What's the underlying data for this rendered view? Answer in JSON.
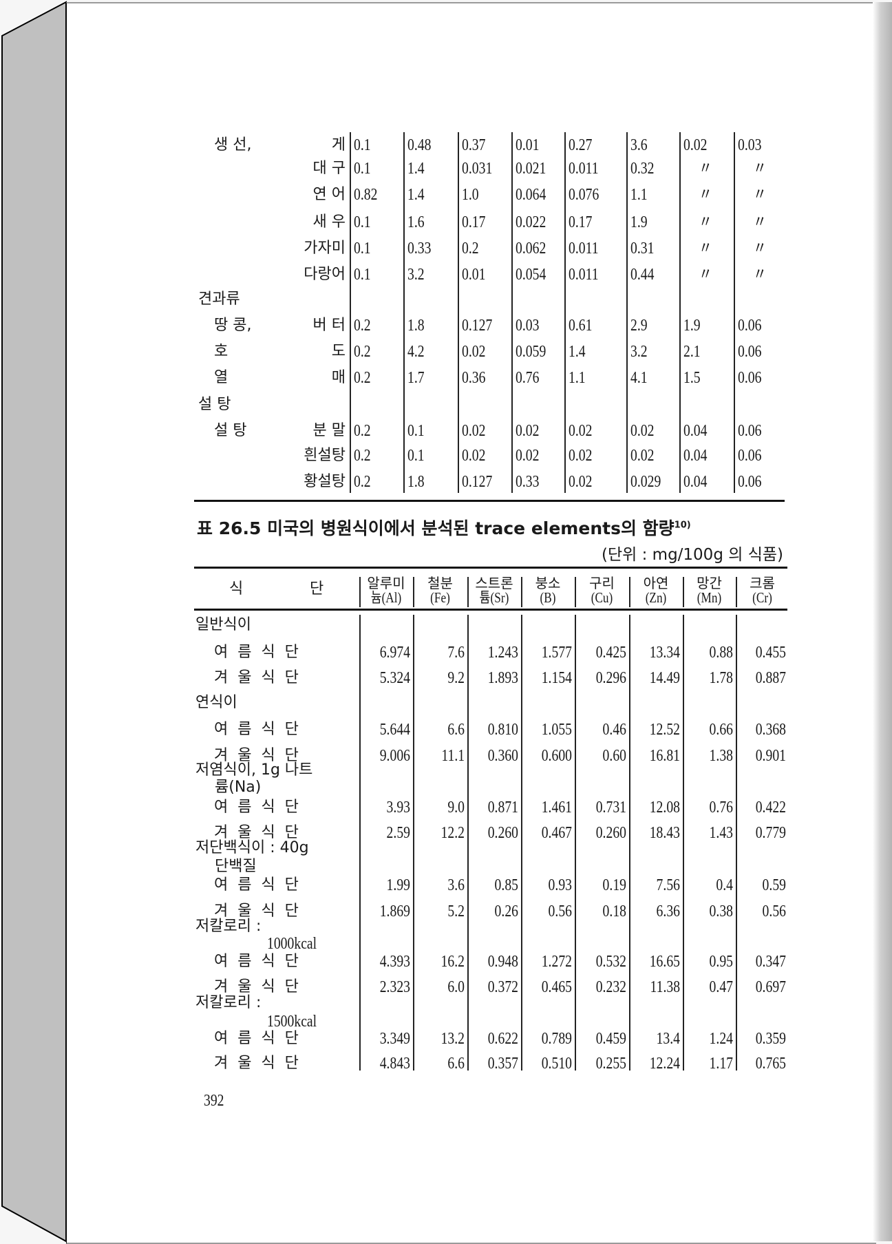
{
  "top_table": {
    "rows": [
      {
        "group": "생   선,",
        "item": "게",
        "values": [
          "0.1",
          "0.48",
          "0.37",
          "0.01",
          "0.27",
          "3.6",
          "0.02",
          "0.03"
        ]
      },
      {
        "item": "대  구",
        "values": [
          "0.1",
          "1.4",
          "0.031",
          "0.021",
          "0.011",
          "0.32",
          "〃",
          "〃"
        ]
      },
      {
        "item": "연  어",
        "values": [
          "0.82",
          "1.4",
          "1.0",
          "0.064",
          "0.076",
          "1.1",
          "〃",
          "〃"
        ]
      },
      {
        "item": "새  우",
        "values": [
          "0.1",
          "1.6",
          "0.17",
          "0.022",
          "0.17",
          "1.9",
          "〃",
          "〃"
        ]
      },
      {
        "item": "가자미",
        "values": [
          "0.1",
          "0.33",
          "0.2",
          "0.062",
          "0.011",
          "0.31",
          "〃",
          "〃"
        ]
      },
      {
        "item": "다랑어",
        "values": [
          "0.1",
          "3.2",
          "0.01",
          "0.054",
          "0.011",
          "0.44",
          "〃",
          "〃"
        ]
      },
      {
        "heading": "견과류"
      },
      {
        "group": "땅  콩,",
        "item": "버  터",
        "values": [
          "0.2",
          "1.8",
          "0.127",
          "0.03",
          "0.61",
          "2.9",
          "1.9",
          "0.06"
        ]
      },
      {
        "group": "호",
        "item": "도",
        "values": [
          "0.2",
          "4.2",
          "0.02",
          "0.059",
          "1.4",
          "3.2",
          "2.1",
          "0.06"
        ]
      },
      {
        "group": "열",
        "item": "매",
        "values": [
          "0.2",
          "1.7",
          "0.36",
          "0.76",
          "1.1",
          "4.1",
          "1.5",
          "0.06"
        ]
      },
      {
        "heading": "설  탕"
      },
      {
        "group": "설  탕",
        "item": "분  말",
        "values": [
          "0.2",
          "0.1",
          "0.02",
          "0.02",
          "0.02",
          "0.02",
          "0.04",
          "0.06"
        ]
      },
      {
        "item": "흰설탕",
        "values": [
          "0.2",
          "0.1",
          "0.02",
          "0.02",
          "0.02",
          "0.02",
          "0.04",
          "0.06"
        ]
      },
      {
        "item": "황설탕",
        "values": [
          "0.2",
          "1.8",
          "0.127",
          "0.33",
          "0.02",
          "0.029",
          "0.04",
          "0.06"
        ]
      }
    ]
  },
  "bottom_table": {
    "title": "표 26.5 미국의 병원식이에서 분석된 trace elements의 함량",
    "title_ref": "10)",
    "unit": "(단위 : mg/100g 의  식품)",
    "row_header": [
      "식",
      "단"
    ],
    "headers": [
      [
        "알루미",
        "늄(Al)"
      ],
      [
        "철분",
        "(Fe)"
      ],
      [
        "스트론",
        "튬(Sr)"
      ],
      [
        "붕소",
        "(B)"
      ],
      [
        "구리",
        "(Cu)"
      ],
      [
        "아연",
        "(Zn)"
      ],
      [
        "망간",
        "(Mn)"
      ],
      [
        "크롬",
        "(Cr)"
      ]
    ],
    "rows": [
      {
        "heading": "일반식이"
      },
      {
        "item": "여  름  식  단",
        "values": [
          "6.974",
          "7.6",
          "1.243",
          "1.577",
          "0.425",
          "13.34",
          "0.88",
          "0.455"
        ]
      },
      {
        "item": "겨  울  식  단",
        "values": [
          "5.324",
          "9.2",
          "1.893",
          "1.154",
          "0.296",
          "14.49",
          "1.78",
          "0.887"
        ]
      },
      {
        "heading": "연식이"
      },
      {
        "item": "여  름  식  단",
        "values": [
          "5.644",
          "6.6",
          "0.810",
          "1.055",
          "0.46",
          "12.52",
          "0.66",
          "0.368"
        ]
      },
      {
        "item": "겨  울  식  단",
        "values": [
          "9.006",
          "11.1",
          "0.360",
          "0.600",
          "0.60",
          "16.81",
          "1.38",
          "0.901"
        ]
      },
      {
        "heading": "저염식이,  1g 나트"
      },
      {
        "heading_cont": "륨(Na)"
      },
      {
        "item": "여  름  식  단",
        "values": [
          "3.93",
          "9.0",
          "0.871",
          "1.461",
          "0.731",
          "12.08",
          "0.76",
          "0.422"
        ]
      },
      {
        "item": "겨  울  식  단",
        "values": [
          "2.59",
          "12.2",
          "0.260",
          "0.467",
          "0.260",
          "18.43",
          "1.43",
          "0.779"
        ]
      },
      {
        "heading": "저단백식이 : 40g"
      },
      {
        "heading_cont": "단백질"
      },
      {
        "item": "여  름  식  단",
        "values": [
          "1.99",
          "3.6",
          "0.85",
          "0.93",
          "0.19",
          "7.56",
          "0.4",
          "0.59"
        ]
      },
      {
        "item": "겨  울  식  단",
        "values": [
          "1.869",
          "5.2",
          "0.26",
          "0.56",
          "0.18",
          "6.36",
          "0.38",
          "0.56"
        ]
      },
      {
        "heading": "저칼로리 :"
      },
      {
        "heading_sub": "1000kcal"
      },
      {
        "item": "여  름  식  단",
        "values": [
          "4.393",
          "16.2",
          "0.948",
          "1.272",
          "0.532",
          "16.65",
          "0.95",
          "0.347"
        ]
      },
      {
        "item": "겨  울  식  단",
        "values": [
          "2.323",
          "6.0",
          "0.372",
          "0.465",
          "0.232",
          "11.38",
          "0.47",
          "0.697"
        ]
      },
      {
        "heading": "저칼로리 :"
      },
      {
        "heading_sub": "1500kcal"
      },
      {
        "item": "여  름  식  단",
        "values": [
          "3.349",
          "13.2",
          "0.622",
          "0.789",
          "0.459",
          "13.4",
          "1.24",
          "0.359"
        ]
      },
      {
        "item": "겨  울  식  단",
        "values": [
          "4.843",
          "6.6",
          "0.357",
          "0.510",
          "0.255",
          "12.24",
          "1.17",
          "0.765"
        ]
      }
    ]
  },
  "page_number": "392"
}
